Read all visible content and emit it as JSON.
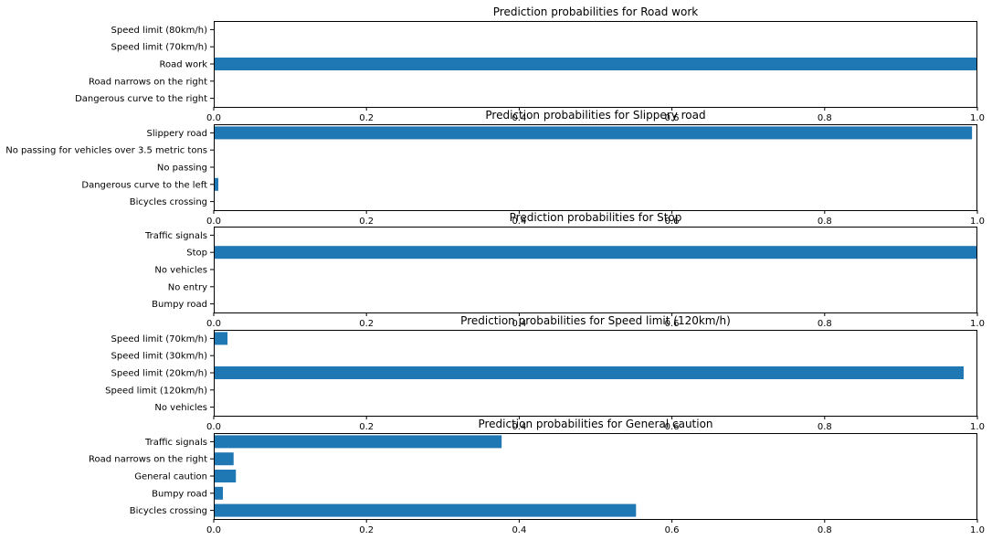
{
  "chart_data": [
    {
      "type": "bar",
      "orientation": "horizontal",
      "title": "Prediction probabilities for Road work",
      "categories": [
        "Speed limit (80km/h)",
        "Speed limit (70km/h)",
        "Road work",
        "Road narrows on the right",
        "Dangerous curve to the right"
      ],
      "values": [
        0.0,
        0.0,
        1.0,
        0.0,
        0.0
      ],
      "xlim": [
        0,
        1
      ],
      "xticks": [
        "0.0",
        "0.2",
        "0.4",
        "0.6",
        "0.8",
        "1.0"
      ],
      "grid": false,
      "color": "#1f77b4"
    },
    {
      "type": "bar",
      "orientation": "horizontal",
      "title": "Prediction probabilities for Slippery road",
      "categories": [
        "Slippery road",
        "No passing for vehicles over 3.5 metric tons",
        "No passing",
        "Dangerous curve to the left",
        "Bicycles crossing"
      ],
      "values": [
        0.993,
        0.0,
        0.0,
        0.006,
        0.0
      ],
      "xlim": [
        0,
        1
      ],
      "xticks": [
        "0.0",
        "0.2",
        "0.4",
        "0.6",
        "0.8",
        "1.0"
      ],
      "grid": false,
      "color": "#1f77b4"
    },
    {
      "type": "bar",
      "orientation": "horizontal",
      "title": "Prediction probabilities for Stop",
      "categories": [
        "Traffic signals",
        "Stop",
        "No vehicles",
        "No entry",
        "Bumpy road"
      ],
      "values": [
        0.0,
        1.0,
        0.0,
        0.0,
        0.0
      ],
      "xlim": [
        0,
        1
      ],
      "xticks": [
        "0.0",
        "0.2",
        "0.4",
        "0.6",
        "0.8",
        "1.0"
      ],
      "grid": false,
      "color": "#1f77b4"
    },
    {
      "type": "bar",
      "orientation": "horizontal",
      "title": "Prediction probabilities for Speed limit (120km/h)",
      "categories": [
        "Speed limit (70km/h)",
        "Speed limit (30km/h)",
        "Speed limit (20km/h)",
        "Speed limit (120km/h)",
        "No vehicles"
      ],
      "values": [
        0.018,
        0.0,
        0.982,
        0.0,
        0.0
      ],
      "xlim": [
        0,
        1
      ],
      "xticks": [
        "0.0",
        "0.2",
        "0.4",
        "0.6",
        "0.8",
        "1.0"
      ],
      "grid": false,
      "color": "#1f77b4"
    },
    {
      "type": "bar",
      "orientation": "horizontal",
      "title": "Prediction probabilities for General caution",
      "categories": [
        "Traffic signals",
        "Road narrows on the right",
        "General caution",
        "Bumpy road",
        "Bicycles crossing"
      ],
      "values": [
        0.377,
        0.026,
        0.029,
        0.012,
        0.553
      ],
      "xlim": [
        0,
        1
      ],
      "xticks": [
        "0.0",
        "0.2",
        "0.4",
        "0.6",
        "0.8",
        "1.0"
      ],
      "grid": false,
      "color": "#1f77b4"
    }
  ]
}
